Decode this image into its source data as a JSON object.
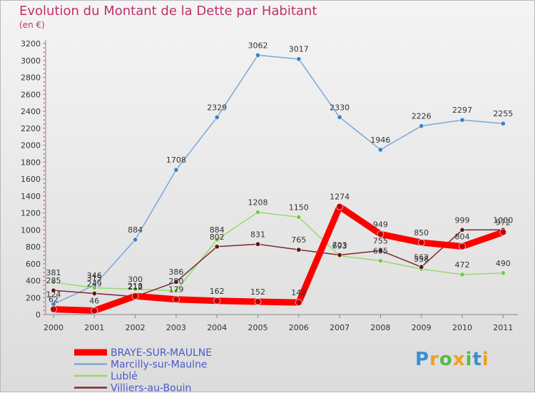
{
  "title": "Evolution du Montant de la Dette par Habitant",
  "subtitle": "(en €)",
  "logo": "Proxiti",
  "chart_data": {
    "type": "line",
    "categories": [
      "2000",
      "2001",
      "2002",
      "2003",
      "2004",
      "2005",
      "2006",
      "2007",
      "2008",
      "2009",
      "2010",
      "2011"
    ],
    "ylim": [
      0,
      3200
    ],
    "yticks": [
      0,
      200,
      400,
      600,
      800,
      1000,
      1200,
      1400,
      1600,
      1800,
      2000,
      2200,
      2400,
      2600,
      2800,
      3000,
      3200
    ],
    "grid": false,
    "legend_position": "bottom-left",
    "series": [
      {
        "name": "BRAYE-SUR-MAULNE",
        "color": "#ff0000",
        "width": 9,
        "values": [
          62,
          46,
          218,
          179,
          162,
          152,
          142,
          1274,
          949,
          850,
          804,
          972
        ]
      },
      {
        "name": "Marcilly-sur-Maulne",
        "color": "#79a8d8",
        "width": 1.5,
        "values": [
          124,
          346,
          884,
          1708,
          2329,
          3062,
          3017,
          2330,
          1946,
          2226,
          2297,
          2255
        ]
      },
      {
        "name": "Lublé",
        "color": "#98d870",
        "width": 1.5,
        "values": [
          381,
          315,
          300,
          280,
          884,
          1208,
          1150,
          693,
          635,
          538,
          472,
          490
        ]
      },
      {
        "name": "Villiers-au-Bouin",
        "color": "#7a2a2a",
        "width": 1.5,
        "values": [
          285,
          249,
          212,
          386,
          802,
          831,
          765,
          703,
          755,
          562,
          999,
          1000
        ]
      }
    ],
    "point_colors": {
      "BRAYE-SUR-MAULNE": "#c00000",
      "Marcilly-sur-Maulne": "#3a82c8",
      "Lublé": "#78c848",
      "Villiers-au-Bouin": "#5a1818"
    }
  }
}
